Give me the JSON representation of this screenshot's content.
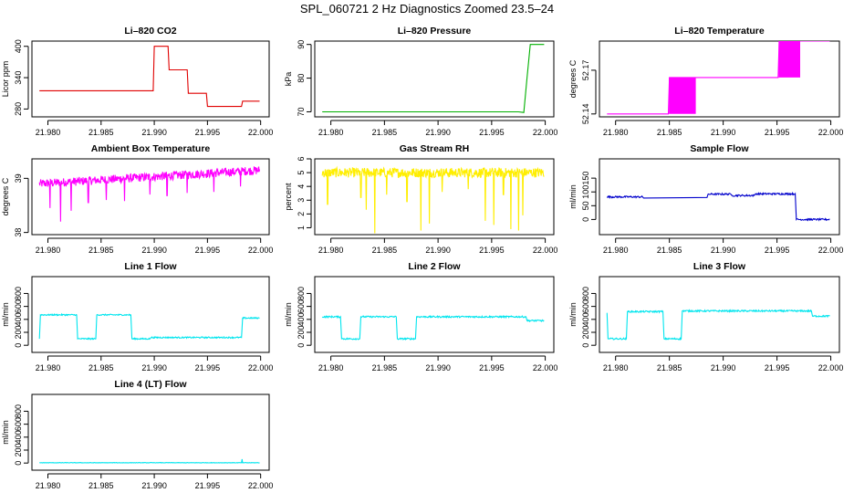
{
  "main_title": "SPL_060721  2 Hz Diagnostics Zoomed 23.5–24",
  "colors": {
    "red": "#e00000",
    "green": "#00b000",
    "magenta": "#ff00ff",
    "yellow": "#ffee00",
    "blue": "#0000cc",
    "cyan": "#00e5ee",
    "frame": "#000000"
  },
  "chart_data": [
    {
      "type": "line",
      "title": "Li–820 CO2",
      "ylabel": "Licor ppm",
      "color": "red",
      "xlim": [
        21.9785,
        22.0008
      ],
      "ylim": [
        265,
        410
      ],
      "yticks": [
        280,
        340,
        400
      ],
      "xticks": [
        "21.980",
        "21.985",
        "21.990",
        "21.995",
        "22.000"
      ],
      "x": [
        21.9792,
        21.9899,
        21.99,
        21.9913,
        21.9914,
        21.9931,
        21.9932,
        21.9949,
        21.995,
        21.9982,
        21.9983,
        21.9999
      ],
      "y": [
        315,
        315,
        400,
        400,
        355,
        355,
        310,
        310,
        285,
        285,
        295,
        295
      ]
    },
    {
      "type": "line",
      "title": "Li–820 Pressure",
      "ylabel": "kPa",
      "color": "green",
      "xlim": [
        21.9785,
        22.0008
      ],
      "ylim": [
        68.5,
        91
      ],
      "yticks": [
        70,
        80,
        90
      ],
      "xticks": [
        "21.980",
        "21.985",
        "21.990",
        "21.995",
        "22.000"
      ],
      "x": [
        21.9792,
        21.9975,
        21.998,
        21.9983,
        21.9986,
        21.9999
      ],
      "y": [
        70,
        70,
        69.8,
        80,
        90,
        90
      ]
    },
    {
      "type": "line",
      "title": "Li–820 Temperature",
      "ylabel": "degrees C",
      "color": "magenta",
      "xlim": [
        21.9785,
        22.0008
      ],
      "ylim": [
        52.138,
        52.19
      ],
      "yticks": [
        52.14,
        52.17
      ],
      "xticks": [
        "21.980",
        "21.985",
        "21.990",
        "21.995",
        "22.000"
      ],
      "x": [
        21.9792,
        21.9849,
        21.985,
        21.9871,
        21.9874,
        21.9951,
        21.9952,
        21.9967,
        21.997,
        21.9999
      ],
      "y": [
        52.14,
        52.14,
        52.165,
        52.165,
        52.165,
        52.165,
        52.19,
        52.19,
        52.19,
        52.19
      ],
      "noise_bands": [
        {
          "x0": 21.985,
          "x1": 21.9874,
          "y_low": 52.14,
          "y_high": 52.165
        },
        {
          "x0": 21.9952,
          "x1": 21.9971,
          "y_low": 52.165,
          "y_high": 52.19
        }
      ]
    },
    {
      "type": "line",
      "title": "Ambient Box Temperature",
      "ylabel": "degrees C",
      "color": "magenta",
      "xlim": [
        21.9785,
        22.0008
      ],
      "ylim": [
        37.96,
        39.36
      ],
      "yticks": [
        38.0,
        39.0
      ],
      "xticks": [
        "21.980",
        "21.985",
        "21.990",
        "21.995",
        "22.000"
      ],
      "x": [
        21.9792,
        21.9999
      ],
      "y": [
        38.9,
        39.15
      ],
      "noise_amplitude": 0.08,
      "spikes_down": [
        {
          "x": 21.9802,
          "y": 38.45
        },
        {
          "x": 21.9812,
          "y": 38.2
        },
        {
          "x": 21.9822,
          "y": 38.4
        },
        {
          "x": 21.9838,
          "y": 38.55
        },
        {
          "x": 21.9855,
          "y": 38.6
        },
        {
          "x": 21.9872,
          "y": 38.58
        },
        {
          "x": 21.9896,
          "y": 38.7
        },
        {
          "x": 21.9912,
          "y": 38.68
        },
        {
          "x": 21.9931,
          "y": 38.73
        },
        {
          "x": 21.9956,
          "y": 38.75
        },
        {
          "x": 21.9981,
          "y": 38.85
        }
      ]
    },
    {
      "type": "line",
      "title": "Gas Stream RH",
      "ylabel": "percent",
      "color": "yellow",
      "xlim": [
        21.9785,
        22.0008
      ],
      "ylim": [
        0.5,
        6.0
      ],
      "yticks": [
        1,
        2,
        3,
        4,
        5,
        6
      ],
      "xticks": [
        "21.980",
        "21.985",
        "21.990",
        "21.995",
        "22.000"
      ],
      "x": [
        21.9792,
        21.9999
      ],
      "y": [
        5.0,
        5.0
      ],
      "noise_amplitude": 0.35,
      "spikes_down": [
        {
          "x": 21.9797,
          "y": 2.7
        },
        {
          "x": 21.9828,
          "y": 3.2
        },
        {
          "x": 21.9833,
          "y": 2.3
        },
        {
          "x": 21.9841,
          "y": 0.6
        },
        {
          "x": 21.9852,
          "y": 3.4
        },
        {
          "x": 21.9871,
          "y": 2.9
        },
        {
          "x": 21.9884,
          "y": 0.8
        },
        {
          "x": 21.9892,
          "y": 1.3
        },
        {
          "x": 21.9904,
          "y": 3.6
        },
        {
          "x": 21.9928,
          "y": 3.8
        },
        {
          "x": 21.9944,
          "y": 1.5
        },
        {
          "x": 21.9952,
          "y": 1.2
        },
        {
          "x": 21.9961,
          "y": 3.4
        },
        {
          "x": 21.9968,
          "y": 0.9
        },
        {
          "x": 21.9975,
          "y": 0.8
        },
        {
          "x": 21.9979,
          "y": 1.9
        }
      ]
    },
    {
      "type": "line",
      "title": "Sample Flow",
      "ylabel": "ml/min",
      "color": "blue",
      "xlim": [
        21.9785,
        22.0008
      ],
      "ylim": [
        -55,
        220
      ],
      "yticks": [
        0,
        50,
        100,
        150
      ],
      "xticks": [
        "21.980",
        "21.985",
        "21.990",
        "21.995",
        "22.000"
      ],
      "x": [
        21.9792,
        21.9825,
        21.9826,
        21.9885,
        21.9886,
        21.9907,
        21.9908,
        21.9929,
        21.993,
        21.9967,
        21.9968,
        21.9999
      ],
      "y": [
        82,
        82,
        78,
        80,
        92,
        92,
        87,
        87,
        93,
        93,
        0,
        0
      ],
      "noise_amplitude": 3
    },
    {
      "type": "line",
      "title": "Line 1 Flow",
      "ylabel": "ml/min",
      "color": "cyan",
      "xlim": [
        21.9785,
        22.0008
      ],
      "ylim": [
        -110,
        1060
      ],
      "yticks": [
        0,
        200,
        400,
        600,
        800
      ],
      "xticks": [
        "21.980",
        "21.985",
        "21.990",
        "21.995",
        "22.000"
      ],
      "x": [
        21.9792,
        21.9793,
        21.9827,
        21.9828,
        21.9845,
        21.9846,
        21.9878,
        21.9879,
        21.9896,
        21.9897,
        21.9982,
        21.9983,
        21.9999
      ],
      "y": [
        100,
        470,
        470,
        100,
        100,
        470,
        470,
        100,
        100,
        120,
        120,
        420,
        420
      ],
      "noise_amplitude": 10
    },
    {
      "type": "line",
      "title": "Line 2 Flow",
      "ylabel": "ml/min",
      "color": "cyan",
      "xlim": [
        21.9785,
        22.0008
      ],
      "ylim": [
        -110,
        1060
      ],
      "yticks": [
        0,
        200,
        400,
        600,
        800
      ],
      "xticks": [
        "21.980",
        "21.985",
        "21.990",
        "21.995",
        "22.000"
      ],
      "x": [
        21.9792,
        21.9809,
        21.981,
        21.9827,
        21.9828,
        21.9861,
        21.9862,
        21.9879,
        21.988,
        21.9982,
        21.9983,
        21.9999
      ],
      "y": [
        440,
        440,
        100,
        100,
        440,
        440,
        100,
        100,
        440,
        440,
        380,
        380
      ],
      "noise_amplitude": 12
    },
    {
      "type": "line",
      "title": "Line 3 Flow",
      "ylabel": "ml/min",
      "color": "cyan",
      "xlim": [
        21.9785,
        22.0008
      ],
      "ylim": [
        -110,
        1060
      ],
      "yticks": [
        0,
        200,
        400,
        600,
        800
      ],
      "xticks": [
        "21.980",
        "21.985",
        "21.990",
        "21.995",
        "22.000"
      ],
      "x": [
        21.9792,
        21.9793,
        21.9794,
        21.981,
        21.9811,
        21.9844,
        21.9845,
        21.9861,
        21.9862,
        21.9982,
        21.9983,
        21.9999
      ],
      "y": [
        500,
        100,
        100,
        100,
        520,
        520,
        100,
        100,
        530,
        530,
        450,
        450
      ],
      "noise_amplitude": 12
    },
    {
      "type": "line",
      "title": "Line 4 (LT) Flow",
      "ylabel": "ml/min",
      "color": "cyan",
      "xlim": [
        21.9785,
        22.0008
      ],
      "ylim": [
        -110,
        1060
      ],
      "yticks": [
        0,
        200,
        400,
        600,
        800
      ],
      "xticks": [
        "21.980",
        "21.985",
        "21.990",
        "21.995",
        "22.000"
      ],
      "x": [
        21.9792,
        21.9982,
        21.99825,
        21.9983,
        21.9999
      ],
      "y": [
        5,
        5,
        60,
        5,
        5
      ],
      "noise_amplitude": 3
    }
  ]
}
